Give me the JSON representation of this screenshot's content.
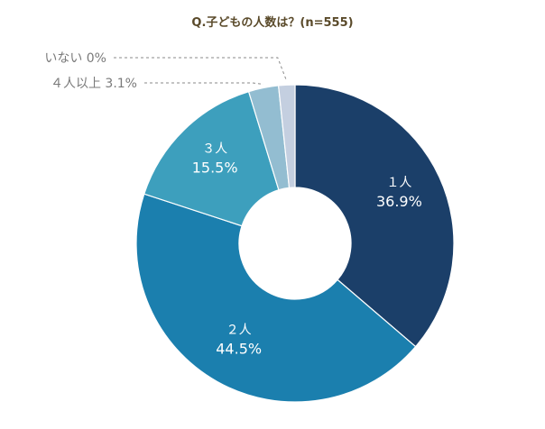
{
  "chart_data": {
    "type": "pie",
    "title": "Q.子どもの人数は？(n=555)",
    "slices": [
      {
        "label": "１人",
        "value": 36.9,
        "value_label": "36.9%",
        "color": "#1b3f69",
        "label_color": "#ffffff"
      },
      {
        "label": "２人",
        "value": 44.5,
        "value_label": "44.5%",
        "color": "#1b7fae",
        "label_color": "#ffffff"
      },
      {
        "label": "３人",
        "value": 15.5,
        "value_label": "15.5%",
        "color": "#3d9fbd",
        "label_color": "#ffffff"
      },
      {
        "label": "４人以上",
        "value": 3.1,
        "value_label": "3.1%",
        "color": "#93bdd1",
        "label_color": "#7a7a7a"
      },
      {
        "label": "いない",
        "value": 0,
        "value_label": "0%",
        "color": "#c4cfe0",
        "label_color": "#7a7a7a"
      }
    ],
    "donut": true,
    "start": "12 o'clock, clockwise"
  }
}
